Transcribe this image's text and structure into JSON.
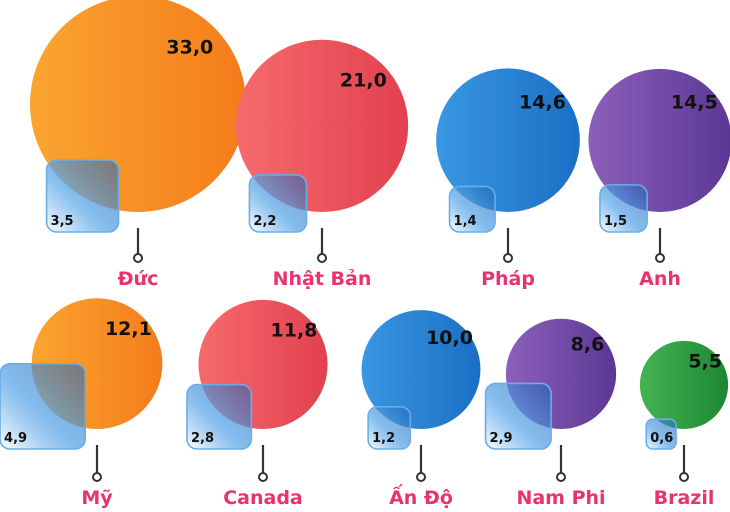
{
  "chart_data": {
    "type": "bubble",
    "series": [
      {
        "name": "big",
        "values": [
          33.0,
          21.0,
          14.6,
          14.5,
          12.1,
          11.8,
          10.0,
          8.6,
          5.5
        ]
      },
      {
        "name": "small",
        "values": [
          3.5,
          2.2,
          1.4,
          1.5,
          4.9,
          2.8,
          1.2,
          2.9,
          0.6
        ]
      }
    ],
    "items": [
      {
        "country": "Đức",
        "big": 33.0,
        "big_label": "33,0",
        "small": 3.5,
        "small_label": "3,5",
        "color": "orange"
      },
      {
        "country": "Nhật Bản",
        "big": 21.0,
        "big_label": "21,0",
        "small": 2.2,
        "small_label": "2,2",
        "color": "red"
      },
      {
        "country": "Pháp",
        "big": 14.6,
        "big_label": "14,6",
        "small": 1.4,
        "small_label": "1,4",
        "color": "blue"
      },
      {
        "country": "Anh",
        "big": 14.5,
        "big_label": "14,5",
        "small": 1.5,
        "small_label": "1,5",
        "color": "purple"
      },
      {
        "country": "Mỹ",
        "big": 12.1,
        "big_label": "12,1",
        "small": 4.9,
        "small_label": "4,9",
        "color": "orange"
      },
      {
        "country": "Canada",
        "big": 11.8,
        "big_label": "11,8",
        "small": 2.8,
        "small_label": "2,8",
        "color": "red"
      },
      {
        "country": "Ấn Độ",
        "big": 10.0,
        "big_label": "10,0",
        "small": 1.2,
        "small_label": "1,2",
        "color": "blue"
      },
      {
        "country": "Nam Phi",
        "big": 8.6,
        "big_label": "8,6",
        "small": 2.9,
        "small_label": "2,9",
        "color": "purple"
      },
      {
        "country": "Brazil",
        "big": 5.5,
        "big_label": "5,5",
        "small": 0.6,
        "small_label": "0,6",
        "color": "green"
      }
    ]
  },
  "colors": {
    "orange": [
      "#fba431",
      "#f47c1a"
    ],
    "red": [
      "#f56b6c",
      "#e2404f"
    ],
    "blue": [
      "#3390de",
      "#1a6fc4"
    ],
    "purple": [
      "#8a5cb8",
      "#5e3a96"
    ],
    "green": [
      "#3cab4a",
      "#1d8a35"
    ],
    "label": "#e8336f"
  }
}
